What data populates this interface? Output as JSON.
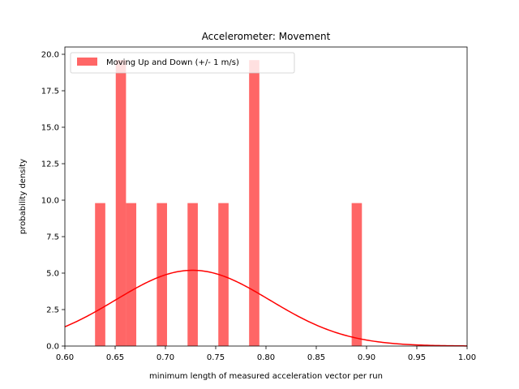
{
  "chart_data": {
    "type": "bar",
    "title": "Accelerometer: Movement",
    "xlabel": "minimum length of measured acceleration vector per run",
    "ylabel": "probability density",
    "xlim": [
      0.6,
      1.0
    ],
    "ylim": [
      0,
      20.5
    ],
    "x_ticks": [
      "0.60",
      "0.65",
      "0.70",
      "0.75",
      "0.80",
      "0.85",
      "0.90",
      "0.95",
      "1.00"
    ],
    "y_ticks": [
      "0.0",
      "2.5",
      "5.0",
      "7.5",
      "10.0",
      "12.5",
      "15.0",
      "17.5",
      "20.0"
    ],
    "bin_width": 0.0102,
    "bars": [
      {
        "x_start": 0.63,
        "height": 9.8
      },
      {
        "x_start": 0.6506,
        "height": 19.6
      },
      {
        "x_start": 0.6608,
        "height": 9.8
      },
      {
        "x_start": 0.6914,
        "height": 9.8
      },
      {
        "x_start": 0.722,
        "height": 9.8
      },
      {
        "x_start": 0.7526,
        "height": 9.8
      },
      {
        "x_start": 0.7832,
        "height": 19.6
      },
      {
        "x_start": 0.8852,
        "height": 9.8
      }
    ],
    "series": [
      {
        "name": "Moving Up and Down (+/- 1 m/s)",
        "kind": "histogram",
        "color": "#ff0000",
        "opacity": 0.6
      },
      {
        "name": "",
        "kind": "normal-pdf",
        "mean": 0.727,
        "std": 0.0768,
        "color": "#ff0000"
      }
    ],
    "legend_position": "top-left",
    "grid": false
  }
}
